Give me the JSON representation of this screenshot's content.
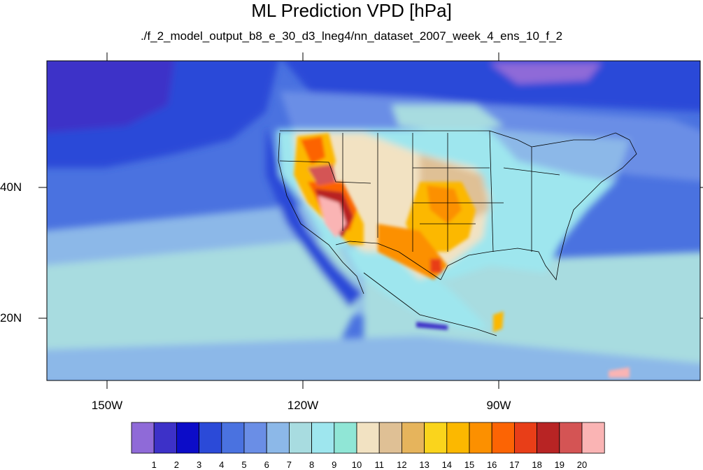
{
  "title": "ML Prediction VPD [hPa]",
  "subtitle": "./f_2_model_output_b8_e_30_d3_lneg4/nn_dataset_2007_week_4_ens_10_f_2",
  "lon_labels": [
    "150W",
    "120W",
    "90W"
  ],
  "lat_labels": [
    "40N",
    "20N"
  ],
  "colorbar": {
    "labels": [
      "1",
      "2",
      "3",
      "4",
      "5",
      "6",
      "7",
      "8",
      "9",
      "10",
      "11",
      "12",
      "13",
      "14",
      "15",
      "16",
      "17",
      "18",
      "19",
      "20"
    ],
    "colors": [
      "#8f6ad8",
      "#3d31c8",
      "#0c0cc8",
      "#2b4ad8",
      "#4a72e0",
      "#6a8ee6",
      "#8cb8e8",
      "#a8dce0",
      "#9ee6ee",
      "#90e6d6",
      "#f2e2c2",
      "#dfc095",
      "#e6b45c",
      "#fad41c",
      "#fcb800",
      "#fc9000",
      "#fc6404",
      "#e83e18",
      "#b82424",
      "#d45454",
      "#fab4b4"
    ]
  }
}
